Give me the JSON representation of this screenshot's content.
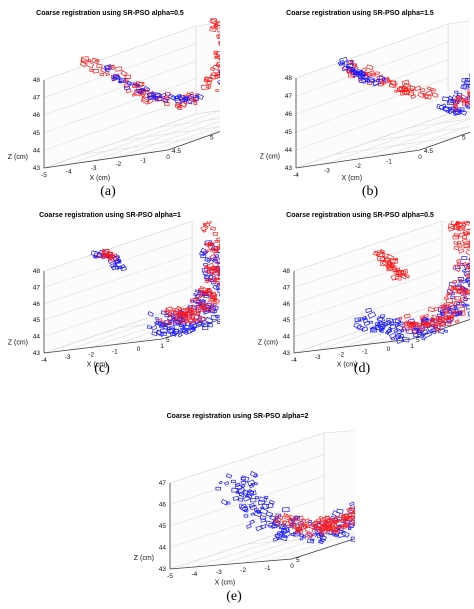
{
  "colors": {
    "red": "#ff1a1a",
    "blue": "#1a1aff",
    "grid": "#d9d9d9",
    "axis": "#444444"
  },
  "chart_data": [
    {
      "type": "scatter",
      "title": "Coarse registration using SR-PSO alpha=0.5",
      "panel_label": "(a)",
      "xlabel": "X (cm)",
      "ylabel": "Y (cm)",
      "zlabel": "Z (cm)",
      "x_ticks": [
        "-5",
        "-4",
        "-3",
        "-2",
        "-1",
        "0"
      ],
      "y_ticks": [
        "4.5",
        "5",
        "5.5",
        "6",
        "6.5"
      ],
      "z_ticks": [
        "48",
        "47",
        "46",
        "45",
        "44",
        "43"
      ],
      "grid": true
    },
    {
      "type": "scatter",
      "title": "Coarse registration using SR-PSO alpha=1.5",
      "panel_label": "(b)",
      "xlabel": "X (cm)",
      "ylabel": "Y (cm)",
      "zlabel": "Z (cm)",
      "x_ticks": [
        "-4",
        "-3",
        "-2",
        "-1",
        "0"
      ],
      "y_ticks": [
        "4.5",
        "5",
        "5.5",
        "6",
        "6.5"
      ],
      "z_ticks": [
        "48",
        "47",
        "46",
        "45",
        "44",
        "43"
      ],
      "grid": true
    },
    {
      "type": "scatter",
      "title": "Coarse registration using SR-PSO alpha=1",
      "panel_label": "(c)",
      "xlabel": "X (cm)",
      "ylabel": "Y (cm)",
      "zlabel": "Z (cm)",
      "x_ticks": [
        "-4",
        "-3",
        "-2",
        "-1",
        "0",
        "1"
      ],
      "y_ticks": [
        "5",
        "6",
        "7"
      ],
      "z_ticks": [
        "48",
        "47",
        "46",
        "45",
        "44",
        "43"
      ],
      "grid": true
    },
    {
      "type": "scatter",
      "title": "Coarse registration using SR-PSO alpha=0.5",
      "panel_label": "(d)",
      "xlabel": "X (cm)",
      "ylabel": "Y (cm)",
      "zlabel": "Z (cm)",
      "x_ticks": [
        "-4",
        "-3",
        "-2",
        "-1",
        "0",
        "1"
      ],
      "y_ticks": [
        "5",
        "6",
        "7"
      ],
      "z_ticks": [
        "48",
        "47",
        "46",
        "45",
        "44",
        "43"
      ],
      "grid": true
    },
    {
      "type": "scatter",
      "title": "Coarse registration using SR-PSO alpha=2",
      "panel_label": "(e)",
      "xlabel": "X (cm)",
      "ylabel": "Y (cm)",
      "zlabel": "Z (cm)",
      "x_ticks": [
        "-5",
        "-4",
        "-3",
        "-2",
        "-1",
        "0"
      ],
      "y_ticks": [
        "5",
        "6",
        "7"
      ],
      "z_ticks": [
        "47",
        "46",
        "45",
        "44",
        "43"
      ],
      "grid": true
    }
  ]
}
